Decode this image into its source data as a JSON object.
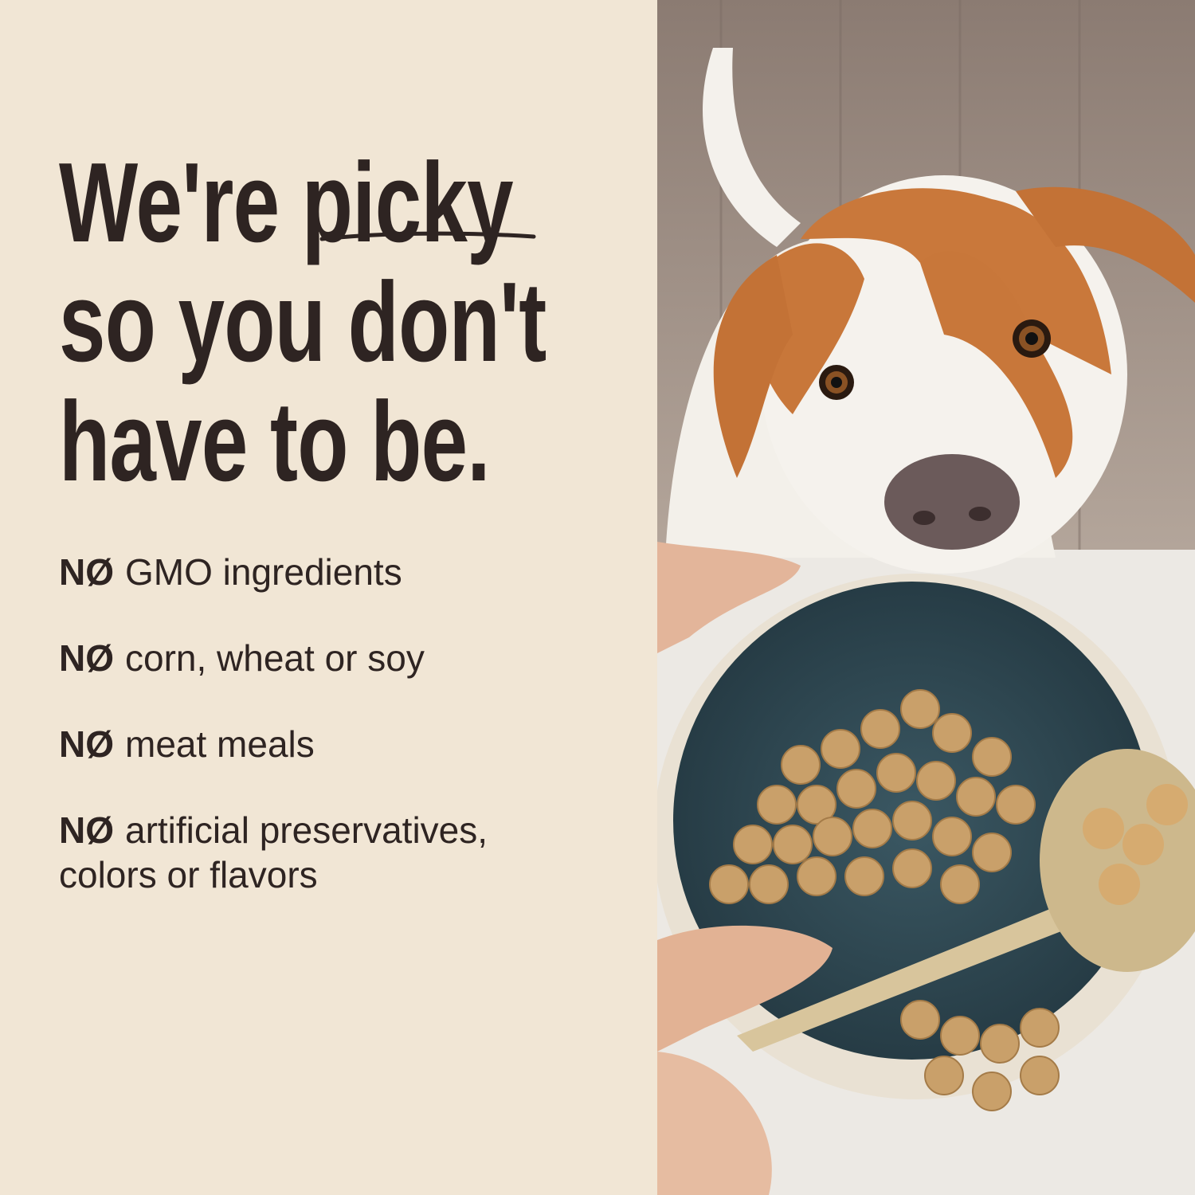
{
  "headline": {
    "line1_pre": "We're ",
    "line1_emph": "picky",
    "line2": "so you don't",
    "line3": "have to be."
  },
  "bullets": [
    {
      "prefix": "NØ",
      "text": "GMO ingredients"
    },
    {
      "prefix": "NØ",
      "text": "corn, wheat or soy"
    },
    {
      "prefix": "NØ",
      "text": "meat meals"
    },
    {
      "prefix": "NØ",
      "text": "artificial preservatives,",
      "text2": "colors or flavors"
    }
  ],
  "colors": {
    "background": "#f1e6d5",
    "text": "#2e2422",
    "bowl": "#2f4a55"
  }
}
